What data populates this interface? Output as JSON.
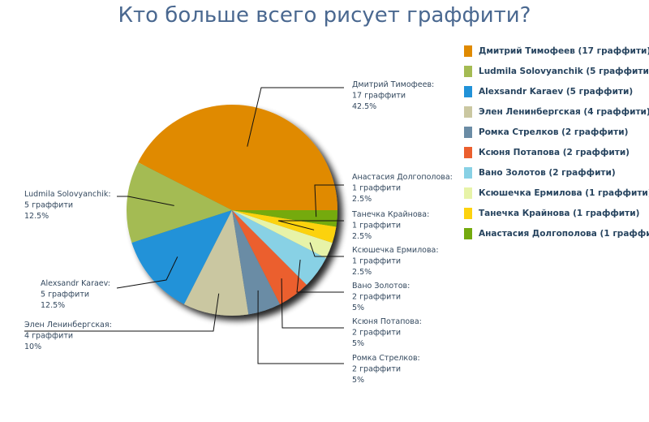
{
  "chart_data": {
    "type": "pie",
    "title": "Кто больше всего рисует граффити?",
    "slices": [
      {
        "name": "Дмитрий Тимофеев",
        "value": 17,
        "value_text": "17 граффити",
        "percent_text": "42.5%",
        "legend": "Дмитрий Тимофеев (17 граффити)",
        "callout_name": "Дмитрий Тимофеев:",
        "color": "#e08a00"
      },
      {
        "name": "Ludmila Solovyanchik",
        "value": 5,
        "value_text": "5 граффити",
        "percent_text": "12.5%",
        "legend": "Ludmila Solovyanchik (5 граффити)",
        "callout_name": "Ludmila Solovyanchik:",
        "color": "#a4bb53"
      },
      {
        "name": "Alexsandr Karaev",
        "value": 5,
        "value_text": "5 граффити",
        "percent_text": "12.5%",
        "legend": "Alexsandr Karaev (5 граффити)",
        "callout_name": "Alexsandr Karaev:",
        "color": "#2192d8"
      },
      {
        "name": "Элен Ленинбергская",
        "value": 4,
        "value_text": "4 граффити",
        "percent_text": "10%",
        "legend": "Элен Ленинбергская (4 граффити)",
        "callout_name": "Элен Ленинбергская:",
        "color": "#cac7a1"
      },
      {
        "name": "Ромка Стрелков",
        "value": 2,
        "value_text": "2 граффити",
        "percent_text": "5%",
        "legend": "Ромка Стрелков (2 граффити)",
        "callout_name": "Ромка Стрелков:",
        "color": "#6b8ca5"
      },
      {
        "name": "Ксюня Потапова",
        "value": 2,
        "value_text": "2 граффити",
        "percent_text": "5%",
        "legend": "Ксюня Потапова (2 граффити)",
        "callout_name": "Ксюня Потапова:",
        "color": "#eb5f2e"
      },
      {
        "name": "Вано Золотов",
        "value": 2,
        "value_text": "2 граффити",
        "percent_text": "5%",
        "legend": "Вано Золотов (2 граффити)",
        "callout_name": "Вано Золотов:",
        "color": "#88d1e5"
      },
      {
        "name": "Ксюшечка Ермилова",
        "value": 1,
        "value_text": "1 граффити",
        "percent_text": "2.5%",
        "legend": "Ксюшечка Ермилова (1 граффити)",
        "callout_name": "Ксюшечка Ермилова:",
        "color": "#e7f3a8"
      },
      {
        "name": "Танечка Крайнова",
        "value": 1,
        "value_text": "1 граффити",
        "percent_text": "2.5%",
        "legend": "Танечка Крайнова (1 граффити)",
        "callout_name": "Танечка Крайнова:",
        "color": "#fcd20f"
      },
      {
        "name": "Анастасия Долгополова",
        "value": 1,
        "value_text": "1 граффити",
        "percent_text": "2.5%",
        "legend": "Анастасия Долгополова (1 граффити)",
        "callout_name": "Анастасия Долгополова:",
        "color": "#74aa0e"
      }
    ],
    "legend_position": "right",
    "start_angle_deg": 0,
    "direction": "counterclockwise"
  }
}
